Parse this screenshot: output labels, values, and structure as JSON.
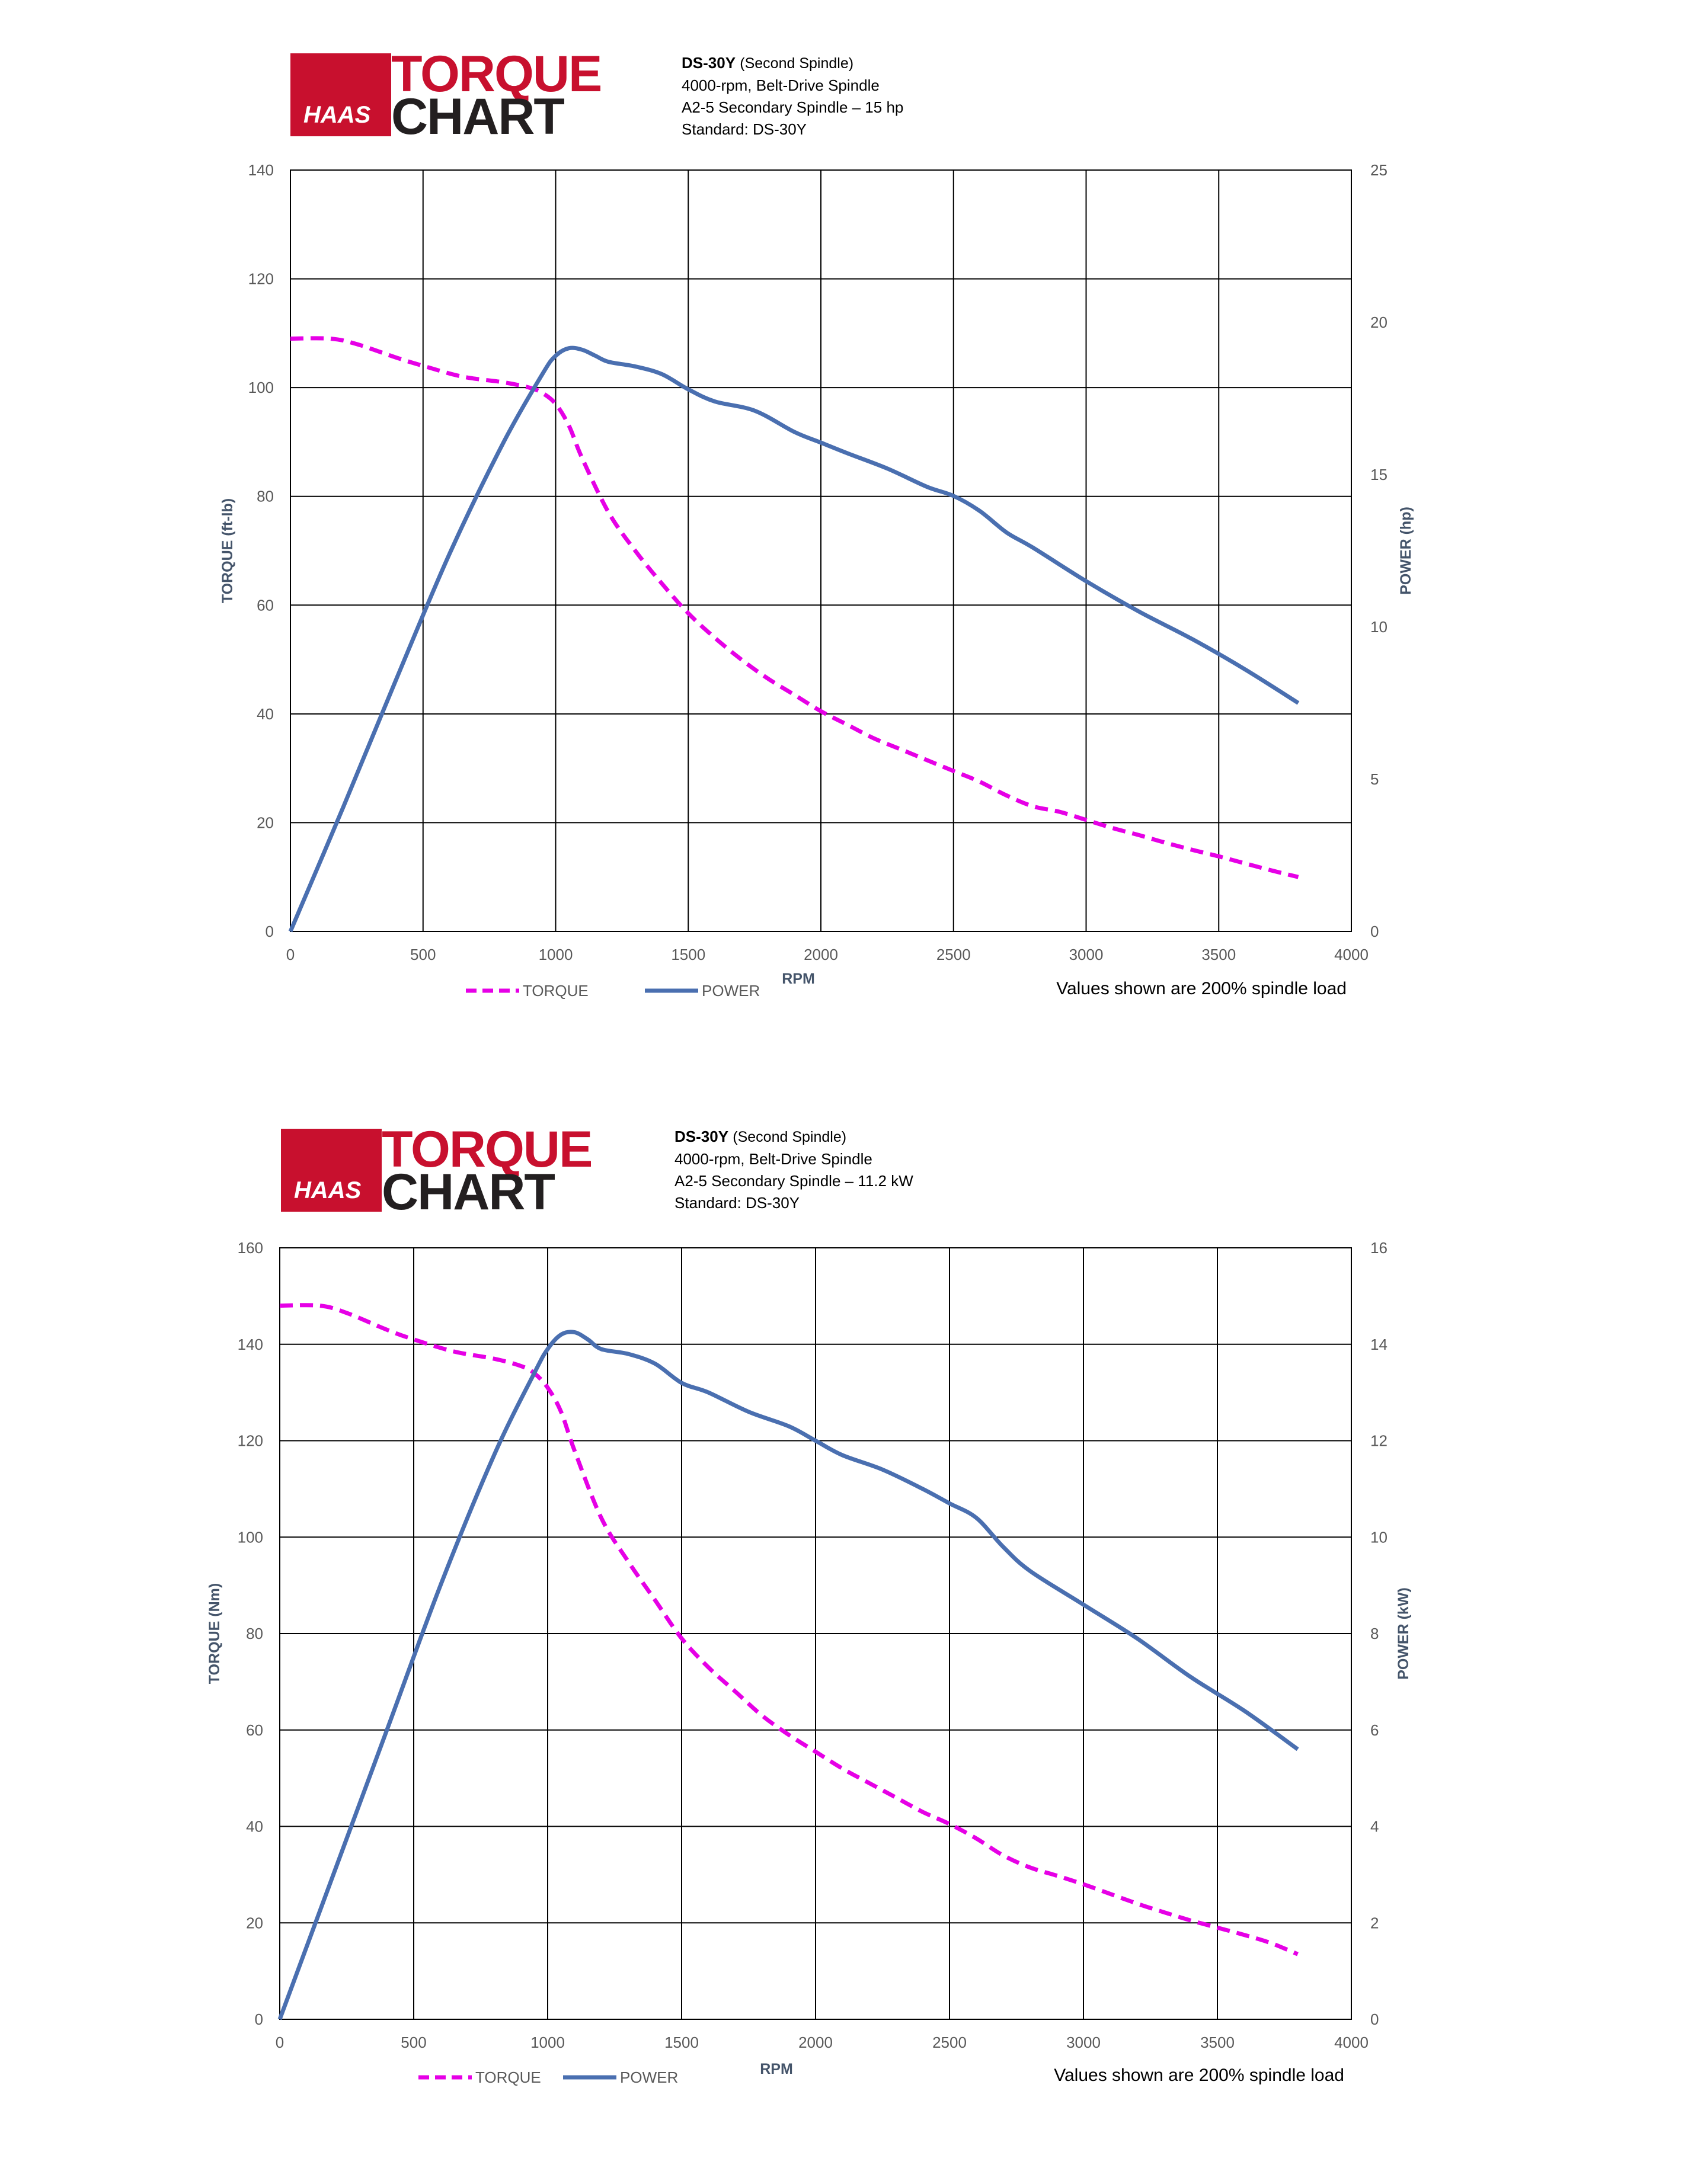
{
  "charts": [
    {
      "logo": {
        "brand": "HAAS",
        "word1": "TORQUE",
        "word2": "CHART"
      },
      "spec": {
        "model": "DS-30Y",
        "model_note": "(Second Spindle)",
        "line2": "4000-rpm, Belt-Drive Spindle",
        "line3": "A2-5 Secondary Spindle – 15 hp",
        "line4": "Standard: DS-30Y"
      },
      "footnote": "Values shown are 200% spindle  load"
    },
    {
      "logo": {
        "brand": "HAAS",
        "word1": "TORQUE",
        "word2": "CHART"
      },
      "spec": {
        "model": "DS-30Y",
        "model_note": "(Second Spindle)",
        "line2": "4000-rpm, Belt-Drive Spindle",
        "line3": "A2-5 Secondary Spindle – 11.2 kW",
        "line4": "Standard: DS-30Y"
      },
      "footnote": "Values shown are 200% spindle  load"
    }
  ],
  "colors": {
    "torque": "#e600e6",
    "power": "#4a6fb0",
    "grid": "#000000",
    "brand_red": "#c8102e"
  },
  "chart_data": [
    {
      "type": "line",
      "xlabel": "RPM",
      "ylabel": "TORQUE (ft-lb)",
      "y2label": "POWER (hp)",
      "xlim": [
        0,
        4000
      ],
      "ylim": [
        0,
        140
      ],
      "y2lim": [
        0,
        25
      ],
      "xticks": [
        0,
        500,
        1000,
        1500,
        2000,
        2500,
        3000,
        3500,
        4000
      ],
      "yticks": [
        0,
        20,
        40,
        60,
        80,
        100,
        120,
        140
      ],
      "y2ticks": [
        0,
        5,
        10,
        15,
        20,
        25
      ],
      "grid": true,
      "legend_position": "bottom",
      "series": [
        {
          "name": "TORQUE",
          "axis": "left",
          "style": "dashed",
          "x": [
            0,
            150,
            250,
            400,
            500,
            650,
            800,
            900,
            950,
            1000,
            1050,
            1100,
            1200,
            1300,
            1400,
            1500,
            1600,
            1700,
            1800,
            1900,
            2000,
            2100,
            2200,
            2300,
            2400,
            2500,
            2600,
            2700,
            2800,
            2900,
            3000,
            3100,
            3200,
            3300,
            3400,
            3500,
            3600,
            3700,
            3800
          ],
          "values": [
            109,
            109,
            108,
            105.5,
            104,
            102,
            101,
            100,
            99,
            97,
            93,
            87,
            77,
            70,
            64,
            58.5,
            54,
            50,
            46.5,
            43.5,
            40.5,
            38,
            35.5,
            33.5,
            31.5,
            29.5,
            27.5,
            25,
            23,
            22,
            20.5,
            19,
            17.7,
            16.3,
            15,
            13.8,
            12.5,
            11.2,
            10
          ]
        },
        {
          "name": "POWER",
          "axis": "right",
          "style": "solid",
          "x": [
            0,
            200,
            400,
            600,
            800,
            950,
            1000,
            1050,
            1100,
            1150,
            1200,
            1300,
            1400,
            1500,
            1600,
            1750,
            1900,
            2000,
            2100,
            2250,
            2400,
            2500,
            2600,
            2700,
            2800,
            3000,
            3200,
            3400,
            3600,
            3800
          ],
          "values": [
            0,
            4.1,
            8.3,
            12.4,
            16.0,
            18.3,
            18.9,
            19.15,
            19.1,
            18.9,
            18.7,
            18.55,
            18.3,
            17.8,
            17.4,
            17.1,
            16.4,
            16.05,
            15.7,
            15.2,
            14.6,
            14.3,
            13.8,
            13.1,
            12.6,
            11.5,
            10.5,
            9.6,
            8.6,
            7.5
          ]
        }
      ]
    },
    {
      "type": "line",
      "xlabel": "RPM",
      "ylabel": "TORQUE (Nm)",
      "y2label": "POWER (kW)",
      "xlim": [
        0,
        4000
      ],
      "ylim": [
        0,
        160
      ],
      "y2lim": [
        0,
        16
      ],
      "xticks": [
        0,
        500,
        1000,
        1500,
        2000,
        2500,
        3000,
        3500,
        4000
      ],
      "yticks": [
        0,
        20,
        40,
        60,
        80,
        100,
        120,
        140,
        160
      ],
      "y2ticks": [
        0,
        2,
        4,
        6,
        8,
        10,
        12,
        14,
        16
      ],
      "grid": true,
      "legend_position": "bottom",
      "series": [
        {
          "name": "TORQUE",
          "axis": "left",
          "style": "dashed",
          "x": [
            0,
            150,
            250,
            400,
            500,
            650,
            800,
            900,
            950,
            1000,
            1050,
            1100,
            1200,
            1300,
            1400,
            1500,
            1600,
            1700,
            1800,
            1900,
            2000,
            2100,
            2200,
            2300,
            2400,
            2500,
            2600,
            2700,
            2800,
            2900,
            3000,
            3100,
            3200,
            3300,
            3400,
            3500,
            3600,
            3700,
            3800
          ],
          "values": [
            148,
            148,
            146.5,
            143,
            141,
            138.5,
            137,
            135.5,
            134,
            131,
            126,
            118,
            104,
            95,
            87,
            79,
            73,
            68,
            63,
            59,
            55.5,
            52,
            49,
            46,
            43,
            40.5,
            37.5,
            34,
            31.5,
            29.8,
            28,
            26,
            24,
            22.2,
            20.5,
            19,
            17.5,
            15.8,
            13.5
          ]
        },
        {
          "name": "POWER",
          "axis": "right",
          "style": "solid",
          "x": [
            0,
            200,
            400,
            600,
            800,
            950,
            1000,
            1050,
            1100,
            1150,
            1200,
            1300,
            1400,
            1500,
            1600,
            1750,
            1900,
            2000,
            2100,
            2250,
            2400,
            2500,
            2600,
            2700,
            2800,
            3000,
            3200,
            3400,
            3600,
            3800
          ],
          "values": [
            0,
            3.0,
            6.0,
            9.0,
            11.7,
            13.4,
            13.9,
            14.2,
            14.25,
            14.1,
            13.9,
            13.8,
            13.6,
            13.2,
            13.0,
            12.6,
            12.3,
            12.0,
            11.7,
            11.4,
            11.0,
            10.7,
            10.4,
            9.8,
            9.3,
            8.6,
            7.9,
            7.1,
            6.4,
            5.6
          ]
        }
      ]
    }
  ]
}
